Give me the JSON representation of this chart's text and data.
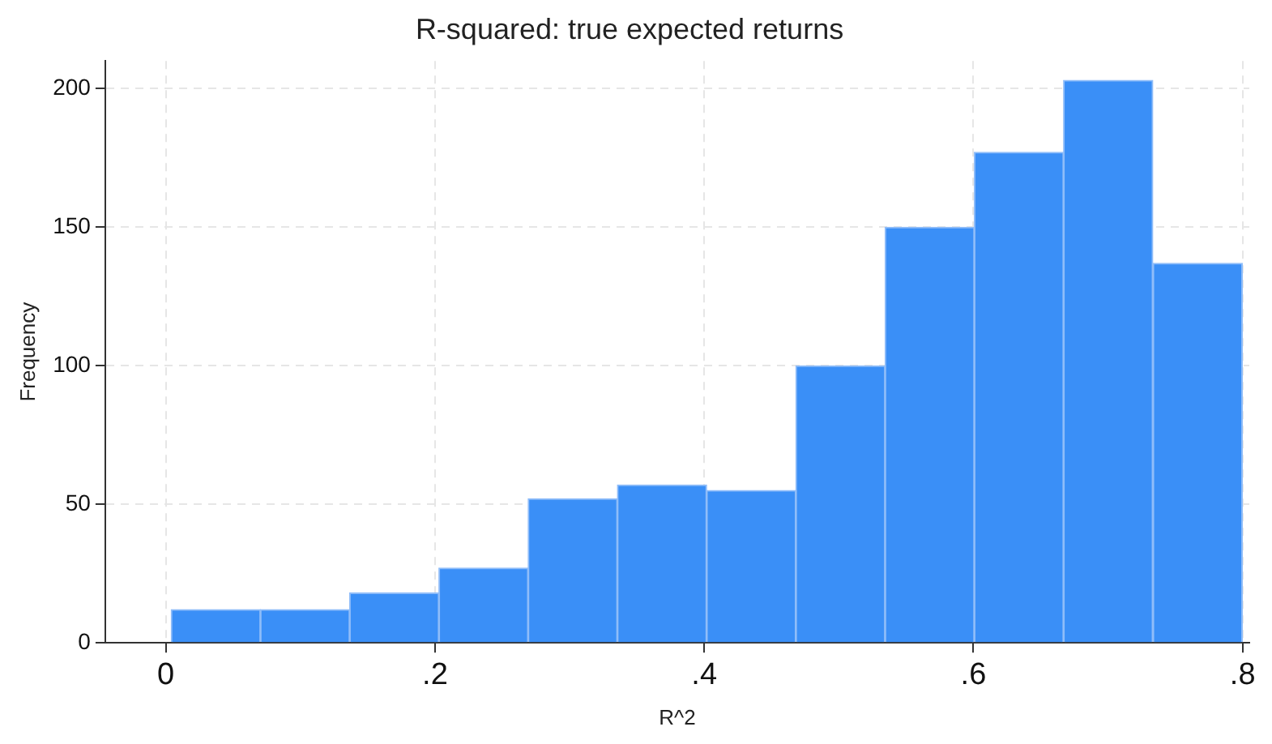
{
  "chart_data": {
    "type": "histogram",
    "title": "R-squared: true expected returns",
    "xlabel": "R^2",
    "ylabel": "Frequency",
    "bins": [
      0.004,
      0.0703,
      0.1366,
      0.2029,
      0.2692,
      0.3355,
      0.4018,
      0.4681,
      0.5344,
      0.6007,
      0.667,
      0.7333,
      0.8
    ],
    "values": [
      12,
      12,
      18,
      27,
      52,
      57,
      55,
      100,
      150,
      177,
      203,
      137
    ],
    "color": "#3a8ff7",
    "xlim": [
      -0.045,
      0.805
    ],
    "ylim": [
      0,
      210
    ],
    "xticks": [
      0,
      {
        "value": 0.2,
        "label": ".2"
      },
      {
        "value": 0.4,
        "label": ".4"
      },
      {
        "value": 0.6,
        "label": ".6"
      },
      {
        "value": 0.8,
        "label": ".8"
      }
    ],
    "yticks": [
      0,
      50,
      100,
      150,
      200
    ],
    "grid": true,
    "legend": false
  }
}
